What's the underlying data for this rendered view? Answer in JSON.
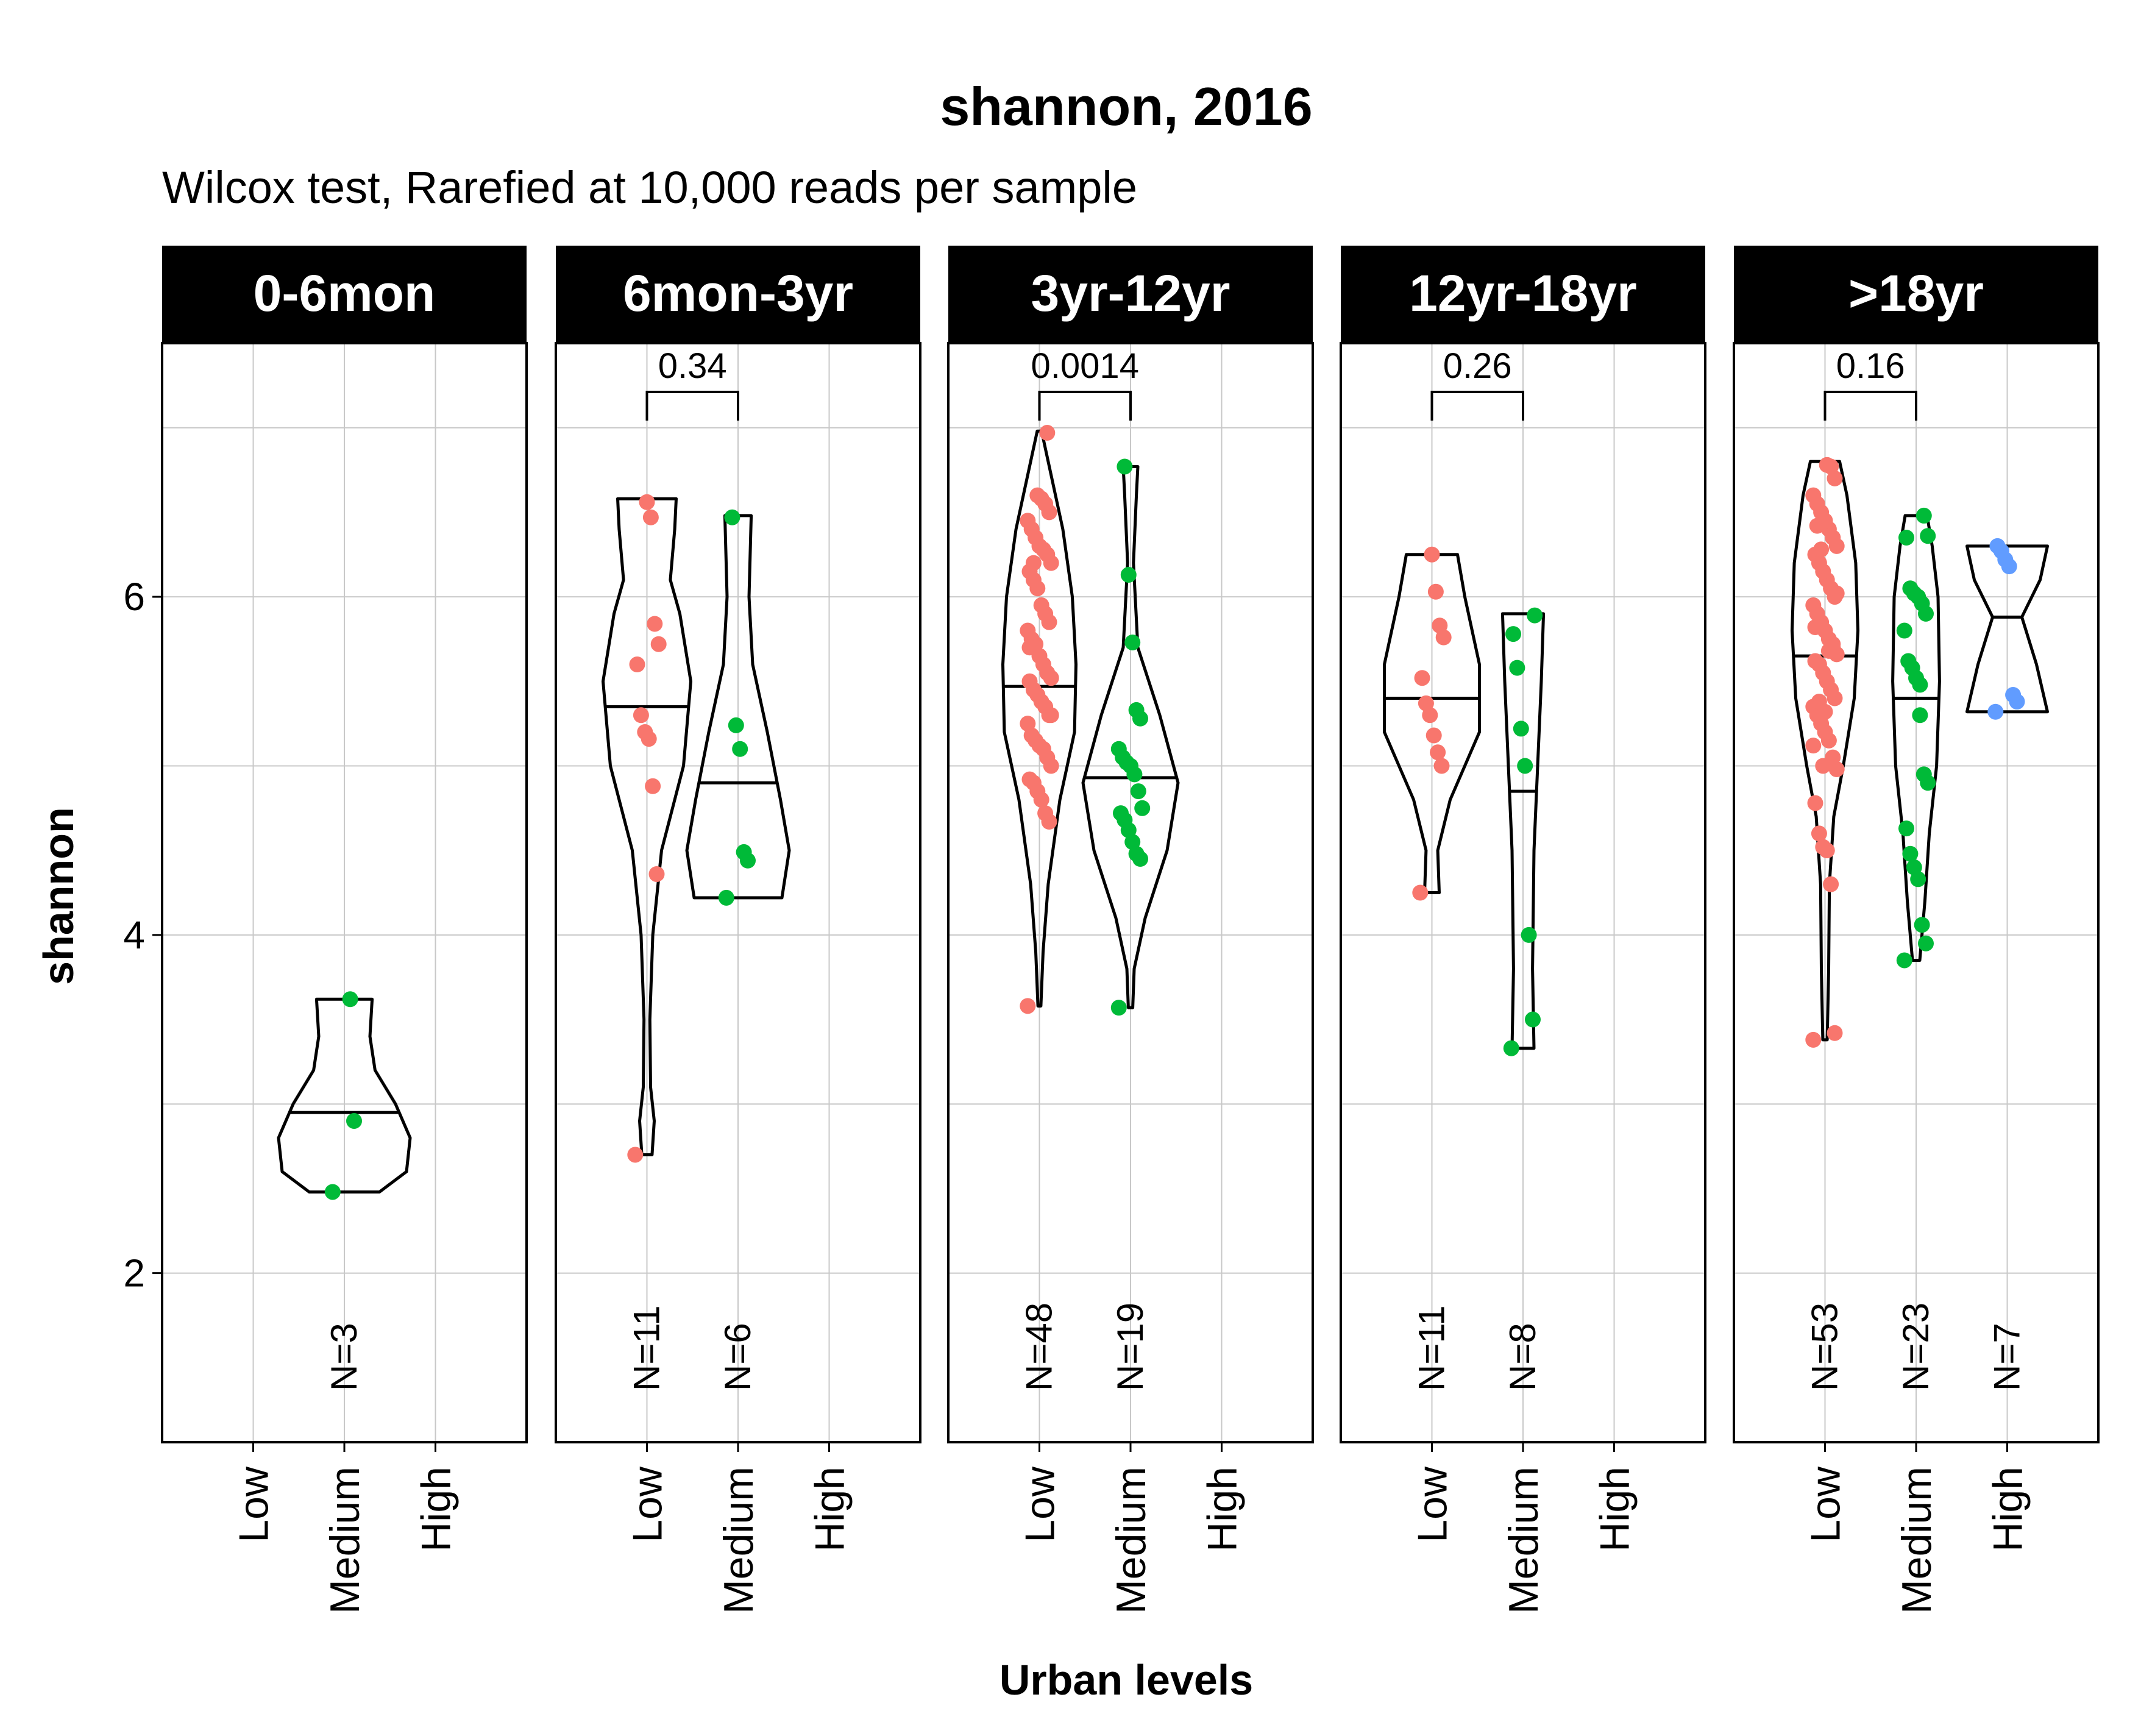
{
  "chart_data": {
    "type": "violin",
    "title": "shannon, 2016",
    "subtitle": "Wilcox test, Rarefied at 10,000 reads per sample",
    "xlabel": "Urban levels",
    "ylabel": "shannon",
    "ylim": [
      1.0,
      7.5
    ],
    "yticks": [
      2,
      4,
      6
    ],
    "categories": [
      "Low",
      "Medium",
      "High"
    ],
    "colors": {
      "Low": "#F8766D",
      "Medium": "#00BA38",
      "High": "#619CFF"
    },
    "grid": true,
    "panels": [
      {
        "label": "0-6mon",
        "groups": [
          {
            "category": "Medium",
            "n_label": "N=3",
            "median": 2.95,
            "profile": [
              [
                2.48,
                0.48
              ],
              [
                2.6,
                0.85
              ],
              [
                2.8,
                0.9
              ],
              [
                3.0,
                0.7
              ],
              [
                3.2,
                0.42
              ],
              [
                3.4,
                0.35
              ],
              [
                3.62,
                0.38
              ]
            ],
            "points": [
              2.48,
              2.9,
              3.62
            ]
          }
        ]
      },
      {
        "label": "6mon-3yr",
        "comparison": {
          "from": "Low",
          "to": "Medium",
          "p": "0.34"
        },
        "groups": [
          {
            "category": "Low",
            "n_label": "N=11",
            "median": 5.35,
            "profile": [
              [
                2.7,
                0.07
              ],
              [
                2.9,
                0.1
              ],
              [
                3.1,
                0.05
              ],
              [
                3.5,
                0.04
              ],
              [
                4.0,
                0.08
              ],
              [
                4.5,
                0.2
              ],
              [
                5.0,
                0.5
              ],
              [
                5.5,
                0.6
              ],
              [
                5.9,
                0.45
              ],
              [
                6.1,
                0.32
              ],
              [
                6.4,
                0.38
              ],
              [
                6.58,
                0.4
              ]
            ],
            "points": [
              2.7,
              4.36,
              4.88,
              5.16,
              5.2,
              5.3,
              5.6,
              5.72,
              5.84,
              6.47,
              6.56
            ]
          },
          {
            "category": "Medium",
            "n_label": "N=6",
            "median": 4.9,
            "profile": [
              [
                4.22,
                0.6
              ],
              [
                4.5,
                0.7
              ],
              [
                4.8,
                0.58
              ],
              [
                5.2,
                0.4
              ],
              [
                5.6,
                0.2
              ],
              [
                6.0,
                0.15
              ],
              [
                6.48,
                0.18
              ]
            ],
            "points": [
              4.22,
              4.44,
              4.49,
              5.1,
              5.24,
              6.47
            ]
          }
        ]
      },
      {
        "label": "3yr-12yr",
        "comparison": {
          "from": "Low",
          "to": "Medium",
          "p": "0.0014"
        },
        "groups": [
          {
            "category": "Low",
            "n_label": "N=48",
            "median": 5.47,
            "profile": [
              [
                3.58,
                0.02
              ],
              [
                3.9,
                0.05
              ],
              [
                4.3,
                0.12
              ],
              [
                4.8,
                0.28
              ],
              [
                5.2,
                0.48
              ],
              [
                5.6,
                0.5
              ],
              [
                6.0,
                0.45
              ],
              [
                6.4,
                0.32
              ],
              [
                6.8,
                0.12
              ],
              [
                6.98,
                0.03
              ]
            ],
            "points": [
              3.58,
              4.67,
              4.72,
              4.8,
              4.85,
              4.9,
              4.92,
              5.0,
              5.05,
              5.1,
              5.12,
              5.15,
              5.18,
              5.25,
              5.3,
              5.35,
              5.38,
              5.42,
              5.45,
              5.5,
              5.52,
              5.55,
              5.6,
              5.65,
              5.72,
              5.75,
              5.8,
              5.85,
              5.9,
              5.95,
              6.05,
              6.1,
              6.15,
              6.2,
              6.25,
              6.28,
              6.3,
              6.35,
              6.4,
              6.45,
              6.5,
              6.55,
              6.58,
              6.6,
              6.2,
              5.7,
              5.3,
              6.97
            ]
          },
          {
            "category": "Medium",
            "n_label": "N=19",
            "median": 4.93,
            "profile": [
              [
                3.57,
                0.03
              ],
              [
                3.8,
                0.05
              ],
              [
                4.1,
                0.2
              ],
              [
                4.5,
                0.5
              ],
              [
                4.9,
                0.65
              ],
              [
                5.3,
                0.4
              ],
              [
                5.7,
                0.1
              ],
              [
                6.2,
                0.04
              ],
              [
                6.6,
                0.08
              ],
              [
                6.77,
                0.1
              ]
            ],
            "points": [
              3.57,
              4.45,
              4.48,
              4.55,
              4.62,
              4.68,
              4.72,
              4.75,
              4.85,
              4.95,
              5.0,
              5.02,
              5.05,
              5.1,
              5.28,
              5.33,
              5.73,
              6.13,
              6.77
            ]
          }
        ]
      },
      {
        "label": "12yr-18yr",
        "comparison": {
          "from": "Low",
          "to": "Medium",
          "p": "0.26"
        },
        "groups": [
          {
            "category": "Low",
            "n_label": "N=11",
            "median": 5.4,
            "profile": [
              [
                4.25,
                0.1
              ],
              [
                4.5,
                0.08
              ],
              [
                4.8,
                0.25
              ],
              [
                5.2,
                0.65
              ],
              [
                5.6,
                0.65
              ],
              [
                6.0,
                0.45
              ],
              [
                6.25,
                0.35
              ]
            ],
            "points": [
              4.25,
              5.0,
              5.08,
              5.18,
              5.3,
              5.37,
              5.52,
              5.76,
              5.83,
              6.03,
              6.25
            ]
          },
          {
            "category": "Medium",
            "n_label": "N=8",
            "median": 4.85,
            "profile": [
              [
                3.33,
                0.15
              ],
              [
                3.8,
                0.13
              ],
              [
                4.5,
                0.15
              ],
              [
                5.0,
                0.2
              ],
              [
                5.5,
                0.25
              ],
              [
                5.9,
                0.28
              ]
            ],
            "points": [
              3.33,
              3.5,
              4.0,
              5.0,
              5.22,
              5.58,
              5.78,
              5.89
            ]
          }
        ]
      },
      {
        "label": ">18yr",
        "comparison": {
          "from": "Low",
          "to": "Medium",
          "p": "0.16"
        },
        "groups": [
          {
            "category": "Low",
            "n_label": "N=53",
            "median": 5.65,
            "profile": [
              [
                3.38,
                0.03
              ],
              [
                3.8,
                0.05
              ],
              [
                4.3,
                0.06
              ],
              [
                4.7,
                0.12
              ],
              [
                5.0,
                0.25
              ],
              [
                5.4,
                0.4
              ],
              [
                5.8,
                0.45
              ],
              [
                6.2,
                0.42
              ],
              [
                6.6,
                0.3
              ],
              [
                6.8,
                0.2
              ]
            ],
            "points": [
              3.38,
              3.42,
              4.3,
              4.5,
              4.52,
              4.6,
              4.78,
              4.98,
              5.05,
              5.15,
              5.2,
              5.25,
              5.3,
              5.35,
              5.4,
              5.45,
              5.5,
              5.55,
              5.6,
              5.62,
              5.66,
              5.7,
              5.75,
              5.8,
              5.85,
              5.9,
              5.95,
              6.0,
              6.05,
              6.1,
              6.15,
              6.2,
              6.25,
              6.3,
              6.35,
              6.4,
              6.45,
              6.5,
              6.55,
              6.6,
              6.7,
              6.77,
              6.78,
              5.0,
              5.38,
              5.82,
              6.02,
              5.72,
              5.68,
              5.32,
              6.28,
              6.42,
              5.12
            ]
          },
          {
            "category": "Medium",
            "n_label": "N=23",
            "median": 5.4,
            "profile": [
              [
                3.85,
                0.05
              ],
              [
                4.2,
                0.12
              ],
              [
                4.6,
                0.18
              ],
              [
                5.0,
                0.28
              ],
              [
                5.5,
                0.32
              ],
              [
                6.0,
                0.3
              ],
              [
                6.3,
                0.22
              ],
              [
                6.48,
                0.15
              ]
            ],
            "points": [
              3.85,
              3.95,
              4.06,
              4.33,
              4.4,
              4.48,
              4.63,
              4.9,
              4.95,
              5.3,
              5.52,
              5.58,
              5.62,
              5.8,
              5.9,
              5.96,
              6.0,
              6.02,
              6.05,
              6.35,
              6.36,
              6.48,
              5.48
            ]
          },
          {
            "category": "High",
            "n_label": "N=7",
            "median": 5.88,
            "profile": [
              [
                5.32,
                0.55
              ],
              [
                5.6,
                0.4
              ],
              [
                5.88,
                0.2
              ],
              [
                6.1,
                0.45
              ],
              [
                6.3,
                0.55
              ]
            ],
            "points": [
              5.32,
              5.38,
              5.42,
              6.18,
              6.22,
              6.27,
              6.3
            ]
          }
        ]
      }
    ]
  }
}
